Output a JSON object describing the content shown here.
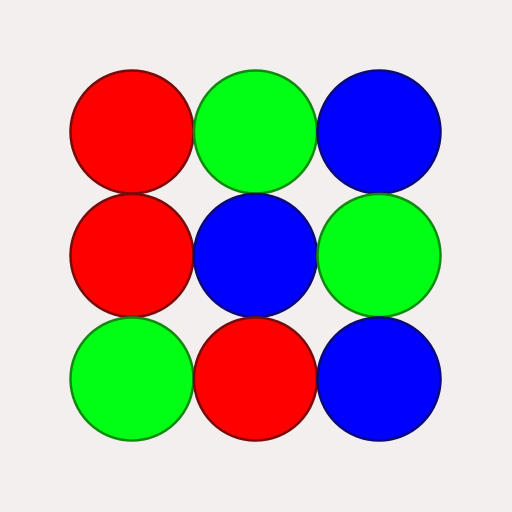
{
  "board": {
    "rows": 3,
    "cols": 3,
    "background": "#f3efef",
    "cells": [
      [
        "red",
        "green",
        "blue"
      ],
      [
        "red",
        "blue",
        "green"
      ],
      [
        "green",
        "red",
        "blue"
      ]
    ]
  },
  "palette": {
    "red": {
      "fill": "#ff0000",
      "stroke": "#7a0a0a"
    },
    "green": {
      "fill": "#00ff14",
      "stroke": "#0f8a0f"
    },
    "blue": {
      "fill": "#0000ff",
      "stroke": "#0a0a7a"
    }
  }
}
